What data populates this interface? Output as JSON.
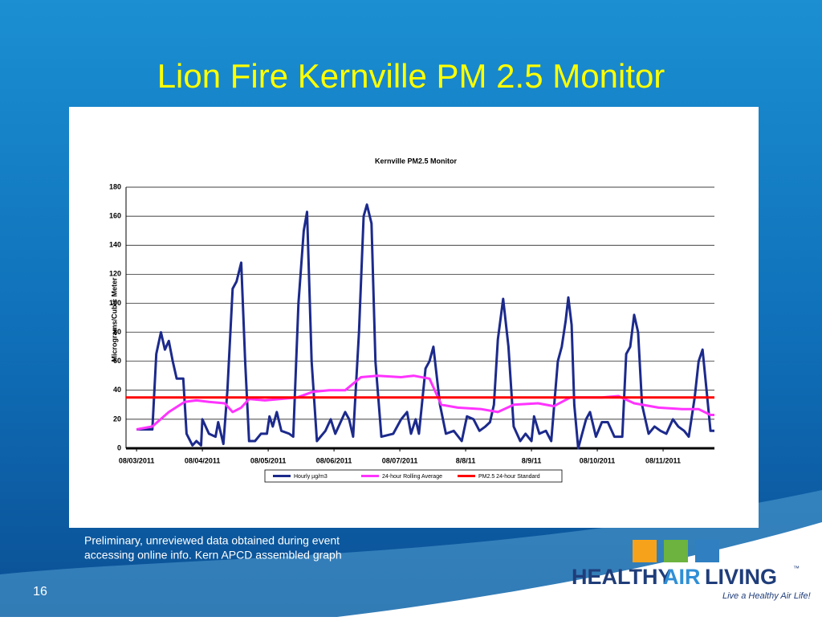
{
  "slide": {
    "title": "Lion Fire Kernville PM 2.5 Monitor",
    "footnote": [
      "Preliminary, unreviewed data obtained during event",
      "accessing online info.  Kern APCD assembled graph"
    ],
    "page_number": "16"
  },
  "logo": {
    "words": [
      "HEALTHY",
      "AIR",
      "LIVING"
    ],
    "trademark": "™",
    "tagline": "Live a Healthy Air Life!"
  },
  "chart_data": {
    "type": "line",
    "title": "Kernville PM2.5 Monitor",
    "y_label": "Micrograms/Cubic Meter",
    "xlim": [
      -0.16,
      8.78
    ],
    "ylim": [
      0,
      180
    ],
    "xticks": [
      {
        "value": 0,
        "label": "08/03/2011"
      },
      {
        "value": 1,
        "label": "08/04/2011"
      },
      {
        "value": 2,
        "label": "08/05/2011"
      },
      {
        "value": 3,
        "label": "08/06/2011"
      },
      {
        "value": 4,
        "label": "08/07/2011"
      },
      {
        "value": 5,
        "label": "8/8/11"
      },
      {
        "value": 6,
        "label": "8/9/11"
      },
      {
        "value": 7,
        "label": "08/10/2011"
      },
      {
        "value": 8,
        "label": "08/11/2011"
      }
    ],
    "yticks": [
      0,
      20,
      40,
      60,
      80,
      100,
      120,
      140,
      160,
      180
    ],
    "grid": true,
    "series": [
      {
        "name": "Hourly µg/m3",
        "color": "#1c2a8c",
        "x": [
          0,
          0.24,
          0.3,
          0.37,
          0.43,
          0.49,
          0.55,
          0.61,
          0.71,
          0.76,
          0.85,
          0.91,
          0.98,
          1.0,
          1.1,
          1.2,
          1.24,
          1.32,
          1.38,
          1.46,
          1.52,
          1.59,
          1.65,
          1.71,
          1.8,
          1.89,
          1.98,
          2.02,
          2.07,
          2.13,
          2.2,
          2.32,
          2.38,
          2.46,
          2.54,
          2.59,
          2.66,
          2.74,
          2.87,
          2.95,
          3.02,
          3.17,
          3.23,
          3.29,
          3.38,
          3.45,
          3.5,
          3.57,
          3.63,
          3.72,
          3.9,
          4.02,
          4.11,
          4.17,
          4.24,
          4.29,
          4.39,
          4.45,
          4.51,
          4.61,
          4.7,
          4.82,
          4.94,
          5.02,
          5.12,
          5.21,
          5.3,
          5.37,
          5.43,
          5.49,
          5.57,
          5.65,
          5.73,
          5.83,
          5.91,
          6.0,
          6.04,
          6.12,
          6.22,
          6.3,
          6.4,
          6.46,
          6.52,
          6.56,
          6.61,
          6.65,
          6.71,
          6.83,
          6.89,
          6.98,
          7.07,
          7.16,
          7.26,
          7.38,
          7.44,
          7.5,
          7.56,
          7.62,
          7.68,
          7.78,
          7.87,
          7.96,
          8.05,
          8.15,
          8.23,
          8.32,
          8.39,
          8.48,
          8.54,
          8.6,
          8.66,
          8.72,
          8.78
        ],
        "values": [
          13,
          13,
          65,
          80,
          68,
          74,
          60,
          48,
          48,
          10,
          2,
          5,
          2,
          20,
          10,
          8,
          18,
          3,
          40,
          110,
          115,
          128,
          60,
          5,
          5,
          10,
          10,
          22,
          15,
          25,
          12,
          10,
          8,
          100,
          150,
          163,
          60,
          5,
          12,
          20,
          10,
          25,
          20,
          8,
          80,
          160,
          168,
          155,
          60,
          8,
          10,
          20,
          25,
          10,
          20,
          10,
          55,
          60,
          70,
          30,
          10,
          12,
          5,
          22,
          20,
          12,
          15,
          18,
          30,
          75,
          103,
          70,
          15,
          5,
          10,
          5,
          22,
          10,
          12,
          5,
          60,
          70,
          88,
          104,
          85,
          30,
          0,
          20,
          25,
          8,
          18,
          18,
          8,
          8,
          65,
          70,
          92,
          80,
          30,
          10,
          15,
          12,
          10,
          20,
          15,
          12,
          8,
          35,
          60,
          68,
          40,
          12,
          12
        ]
      },
      {
        "name": "24-hour Rolling Average",
        "color": "#ff33ff",
        "x": [
          0,
          0.24,
          0.49,
          0.73,
          0.91,
          1.1,
          1.34,
          1.46,
          1.59,
          1.71,
          1.95,
          2.44,
          2.68,
          2.93,
          3.17,
          3.41,
          3.66,
          4.02,
          4.21,
          4.45,
          4.63,
          4.88,
          5.24,
          5.49,
          5.73,
          6.1,
          6.34,
          6.59,
          7.07,
          7.32,
          7.56,
          7.93,
          8.29,
          8.54,
          8.72,
          8.78
        ],
        "values": [
          13,
          15,
          25,
          32,
          33,
          32,
          31,
          25,
          28,
          34,
          33,
          35,
          39,
          40,
          40,
          49,
          50,
          49,
          50,
          48,
          30,
          28,
          27,
          25,
          30,
          31,
          29,
          35,
          35,
          36,
          31,
          28,
          27,
          27,
          23,
          23
        ]
      },
      {
        "name": "PM2.5 24-hour Standard",
        "color": "#ff0000",
        "x": [
          -0.16,
          8.78
        ],
        "values": [
          35,
          35
        ]
      }
    ]
  }
}
